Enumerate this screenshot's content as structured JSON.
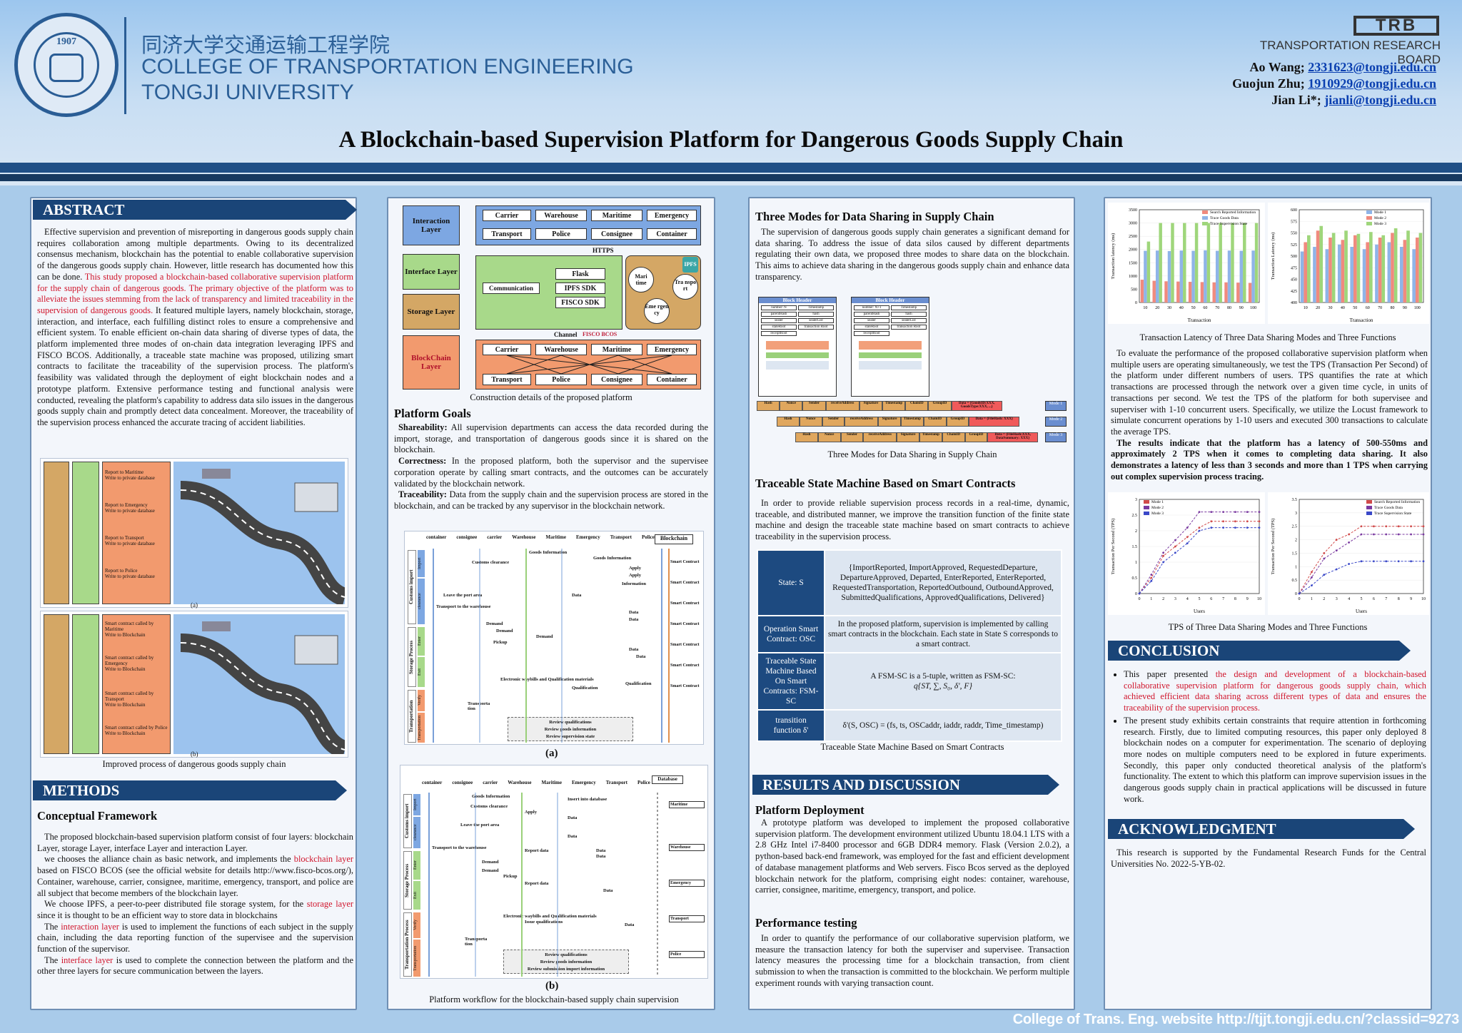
{
  "header": {
    "college_cn": "同济大学交通运输工程学院",
    "college_en1": "COLLEGE OF TRANSPORTATION ENGINEERING",
    "college_en2": "TONGJI UNIVERSITY",
    "seal_year": "1907",
    "trb_logo": "TRB",
    "trb_name": "TRANSPORTATION RESEARCH BOARD",
    "authors": [
      {
        "name": "Ao Wang; ",
        "email": "2331623@tongji.edu.cn"
      },
      {
        "name": "Guojun Zhu; ",
        "email": "1910929@tongji.edu.cn"
      },
      {
        "name": "Jian Li*; ",
        "email": "jianli@tongji.edu.cn"
      }
    ],
    "title": "A Blockchain-based Supervision Platform for Dangerous Goods Supply Chain"
  },
  "abstract": {
    "heading": "ABSTRACT",
    "p1": "Effective supervision and prevention of misreporting in dangerous goods supply chain requires collaboration among multiple departments. Owing to its decentralized consensus mechanism, blockchain has the potential to enable collaborative supervision of the dangerous goods supply chain. However, little research has documented how this can be done. ",
    "p1_red": "This study proposed a blockchain-based collaborative supervision platform for the supply chain of dangerous goods. The primary objective of the platform was to alleviate the issues stemming from the lack of transparency and limited traceability in the supervision of dangerous goods.",
    "p1_rest": " It featured multiple layers, namely blockchain, storage, interaction, and interface, each fulfilling distinct roles to ensure a comprehensive and efficient system. To enable efficient on-chain data sharing of diverse types of data, the platform implemented three modes of on-chain data integration leveraging IPFS and FISCO BCOS. Additionally, a traceable state machine was proposed, utilizing smart contracts to facilitate the traceability of the supervision process. The platform's feasibility was validated through the deployment of eight blockchain nodes and a prototype platform. Extensive performance testing and functional analysis were conducted, revealing the platform's capability to address data silo issues in the dangerous goods supply chain and promptly detect data concealment. Moreover, the traceability of the supervision process enhanced the accurate tracing of accident liabilities.",
    "fig_a_items": [
      "Report to Maritime\nWrite to private database",
      "Report to Emergency\nWrite to private database",
      "Report to Transport\nWrite to private database",
      "Report to Police\nWrite to private database"
    ],
    "fig_b_items": [
      "Smart contract called by Maritime\nWrite to Blockchain",
      "Smart contract called by Emergency\nWrite to Blockchain",
      "Smart contract called by Transport\nWrite to Blockchain",
      "Smart contract called by Police\nWrite to Blockchain"
    ],
    "fig_a_label": "(a)",
    "fig_b_label": "(b)",
    "caption": "Improved process of dangerous goods supply chain"
  },
  "methods": {
    "heading": "METHODS",
    "sub": "Conceptual Framework",
    "p1": "The proposed blockchain-based supervision platform consist of four layers: blockchain Layer, storage Layer, interface Layer and interaction Layer.",
    "p2a": "we chooses the alliance chain as basic network, and implements the ",
    "p2red": "blockchain layer",
    "p2b": " based on FISCO BCOS (see the official website for details http://www.fisco-bcos.org/), Container, warehouse, carrier, consignee, maritime, emergency, transport, and police are all subject that become members of the blockchain layer.",
    "p3a": "We choose IPFS, a peer-to-peer distributed file storage system, for the ",
    "p3red": "storage layer",
    "p3b": " since it is thought to be an efficient way to store data in blockchains",
    "p4a": "The ",
    "p4red": "interaction layer",
    "p4b": " is used to implement the functions of each subject in the supply chain, including the data reporting function of the supervisee and the supervision function of the supervisor.",
    "p5a": "The ",
    "p5red": "interface layer",
    "p5b": " is used to complete the connection between the platform and the other three layers for secure communication between the layers."
  },
  "platform": {
    "layers": [
      "Interaction Layer",
      "Interface Layer",
      "Storage Layer",
      "BlockChain Layer"
    ],
    "top_row1": [
      "Carrier",
      "Warehouse",
      "Maritime",
      "Emergency"
    ],
    "top_row2": [
      "Transport",
      "Police",
      "Consignee",
      "Container"
    ],
    "https": "HTTPS",
    "communication": "Communication",
    "sdk": [
      "Flask",
      "IPFS SDK",
      "FISCO SDK"
    ],
    "storage_nodes": [
      "Mari time",
      "Tra nspo rt",
      "Eme rgen cy",
      "IPFS"
    ],
    "channel": "Channel",
    "fisco": "FISCO BCOS",
    "bottom_row1": [
      "Carrier",
      "Warehouse",
      "Maritime",
      "Emergency"
    ],
    "bottom_row2": [
      "Transport",
      "Police",
      "Consignee",
      "Container"
    ],
    "caption": "Construction details of the proposed platform"
  },
  "goals": {
    "heading": "Platform Goals",
    "items": [
      {
        "term": "Shareability:",
        "text": " All supervision departments can access the data recorded during the import, storage, and transportation of dangerous goods since it is shared on the blockchain."
      },
      {
        "term": "Correctness:",
        "text": " In the proposed platform, both the supervisor and the supervisee corporation operate by calling smart contracts, and the outcomes can be accurately validated by the blockchain network."
      },
      {
        "term": "Traceability:",
        "text": " Data from the supply chain and the supervision process are stored in the blockchain, and can be tracked by any supervisor in the blockchain network."
      }
    ]
  },
  "workflow_a": {
    "actors": [
      "container",
      "consignee",
      "carrier",
      "Warehouse",
      "Maritime",
      "Emergency",
      "Transport",
      "Police"
    ],
    "right_head": "Blockchain",
    "stages": [
      "Customs import",
      "Storage Process",
      "Transportation"
    ],
    "substages": [
      "Import",
      "clearance",
      "Enter",
      "Exit",
      "Verify",
      "Transportation"
    ],
    "steps": [
      "Goods Information",
      "Customs clearance",
      "Goods Information",
      "Apply",
      "Apply",
      "Information",
      "Leave the port area",
      "Data",
      "Transport to the warehouse",
      "Data",
      "Data",
      "Demand",
      "Demand",
      "Demand",
      "Pickup",
      "Data",
      "Data",
      "Electronic waybills and Qualification materials",
      "Qualification",
      "Qualification",
      "Transporta tion",
      "Review qualifications",
      "Review goods information",
      "Review supervision state"
    ],
    "contract": "Smart Contract",
    "label": "(a)"
  },
  "workflow_b": {
    "actors": [
      "container",
      "consignee",
      "carrier",
      "Warehouse",
      "Maritime",
      "Emergency",
      "Transport",
      "Police"
    ],
    "right_head": "Database",
    "stages": [
      "Customs import",
      "Storage Process",
      "Transportation Process"
    ],
    "substages": [
      "Import",
      "clearance",
      "Enter",
      "Exit",
      "Verify",
      "Transportation"
    ],
    "steps": [
      "Goods Information",
      "Insert into database",
      "Customs clearance",
      "Apply",
      "Data",
      "Leave the port area",
      "Data",
      "Transport to the warehouse",
      "Report data",
      "Data",
      "Data",
      "Demand",
      "Demand",
      "Pickup",
      "Report data",
      "Data",
      "Electronic waybills and Qualification materials",
      "Issue qualifications",
      "Data",
      "Transporta tion",
      "Review qualifications",
      "Review goods information",
      "Review submission import information"
    ],
    "db_labels": [
      "Maritime",
      "Warehouse",
      "Emergency",
      "Transport",
      "Police"
    ],
    "label": "(b)",
    "caption": "Platform workflow for the blockchain-based supply chain supervision"
  },
  "modes": {
    "heading": "Three Modes for Data Sharing in Supply Chain",
    "text": "The supervision of dangerous goods supply chain generates a significant demand for data sharing. To address the issue of data silos caused by different departments regulating their own data, we proposed three modes to share data on the blockchain. This aims to achieve data sharing in the dangerous goods supply chain and enhance data transparency.",
    "block_header": "Block Header",
    "header_fields": [
      "number: N",
      "Timestamp",
      "parentHash",
      "hash",
      "sealer",
      "sealerList",
      "stateRoot",
      "transaction Root",
      "receiptRoot"
    ],
    "header_fields2": [
      "number: N+1",
      "Timestamp",
      "parentHash",
      "hash",
      "sealer",
      "sealerList",
      "stateRoot",
      "transaction Root",
      "receiptRoot"
    ],
    "tx_fields": [
      "Hash",
      "Nonce",
      "Sender",
      "receiveAddress",
      "Signature",
      "Timestamp",
      "ChainID",
      "GroupID"
    ],
    "mode_data": [
      "Data = {GoodsID:XXX, GoodsType:XXX, ...}",
      "Data = {FileHash: XXX}",
      "Data = {FileHash:XXX, DataSummary: XXX}"
    ],
    "mode_labels": [
      "Mode 1",
      "Mode 2",
      "Mode 3"
    ],
    "caption": "Three Modes for Data Sharing in Supply Chain"
  },
  "tsm": {
    "heading": "Traceable State Machine Based on Smart Contracts",
    "text": "In order to provide reliable supervision process records in a real-time, dynamic, traceable, and distributed manner, we improve the transition function of the finite state machine and design the traceable state machine based on smart contracts to achieve traceability in the supervision process.",
    "rows": [
      {
        "label": "State: S",
        "value": "{ImportReported, ImportApproved, RequestedDeparture, DepartureApproved, Departed, EnterReported, EnterReported, RequestedTransportation, ReportedOutbound, OutboundApproved, SubmittedQualifications, ApprovedQualifications, Delivered}"
      },
      {
        "label": "Operation Smart Contract: OSC",
        "value": "In the proposed platform, supervision is implemented by calling smart contracts in the blockchain. Each state in State S corresponds to a smart contract."
      },
      {
        "label": "Traceable State Machine Based On Smart Contracts: FSM-SC",
        "value": "A FSM-SC is a 5-tuple, written as FSM-SC:",
        "value2": "q{ST, ∑, S₀, δ', F}"
      },
      {
        "label": "transition function δ'",
        "value": "δ'(S, OSC) = (fs, ts, OSCaddr, iaddr, raddr, Time_timestamp)"
      }
    ],
    "caption": "Traceable State Machine Based on Smart Contracts"
  },
  "results": {
    "heading": "RESULTS AND DISCUSSION",
    "deploy_h": "Platform Deployment",
    "deploy_text": "A prototype platform was developed to implement the proposed collaborative supervision platform. The development environment utilized Ubuntu 18.04.1 LTS with a 2.8 GHz Intel i7-8400 processor and 6GB DDR4 memory. Flask (Version 2.0.2), a python-based back-end framework, was employed for the fast and efficient development of database management platforms and Web servers. Fisco Bcos served as the deployed blockchain network for the platform, comprising eight nodes: container, warehouse, carrier, consignee, maritime, emergency, transport, and police.",
    "perf_h": "Performance testing",
    "perf_text": "In order to quantify the performance of our collaborative supervision platform, we measure the transaction latency for both the superviser and supervisee. Transaction latency measures the processing time for a blockchain transaction, from client submission to when the transaction is committed to the blockchain. We perform multiple experiment rounds with varying transaction count."
  },
  "latency": {
    "caption": "Transaction Latency of Three Data Sharing Modes and Three Functions",
    "text": "To evaluate the performance of the proposed collaborative supervision platform when multiple users are operating simultaneously, we test the TPS (Transaction Per Second) of the platform under different numbers of users. TPS quantifies the rate at which transactions are processed through the network over a given time cycle, in units of transactions per second. We test the TPS of the platform for both supervisee and superviser with 1-10 concurrent users. Specifically, we utilize the Locust framework to simulate concurrent operations by 1-10 users and executed 300 transactions to calculate the average TPS.",
    "bold_text": "The results indicate that the platform has a latency of 500-550ms and approximately 2 TPS when it comes to completing data sharing. It also demonstrates a latency of less than 3 seconds and more than 1 TPS when carrying out complex supervision process tracing.",
    "tps_caption": "TPS of Three Data Sharing Modes and Three Functions"
  },
  "conclusion": {
    "heading": "CONCLUSION",
    "b1a": "This paper presented ",
    "b1red": "the design and development of a blockchain-based collaborative supervision platform for dangerous goods supply chain, which achieved efficient data sharing across different types of data and ensures the traceability of the supervision process.",
    "b2": "The present study exhibits certain constraints that require attention in forthcoming research. Firstly, due to limited computing resources, this paper only deployed 8 blockchain nodes on a  computer for experimentation. The scenario of deploying more nodes on multiple computers need to be explored in future experiments. Secondly, this paper only conducted theoretical analysis of the platform's functionality. The extent to which this platform can improve supervision issues in the dangerous goods supply chain in practical applications will be discussed in future work."
  },
  "ack": {
    "heading": "ACKNOWLEDGMENT",
    "text": "This research is supported by the Fundamental Research Funds for the Central Universities No. 2022-5-YB-02."
  },
  "footer": "College of Trans. Eng. website   http://tjjt.tongji.edu.cn/?classid=9273",
  "chart_data": [
    {
      "type": "bar",
      "title": "",
      "xlabel": "Transaction",
      "ylabel": "Transaction latency (ms)",
      "categories": [
        10,
        20,
        30,
        40,
        50,
        60,
        70,
        80,
        90,
        100
      ],
      "ylim": [
        0,
        3500
      ],
      "yticks": [
        0,
        500,
        1000,
        1500,
        2000,
        2500,
        3000,
        3500
      ],
      "legend": "top-right",
      "series": [
        {
          "name": "Search Reported Information",
          "color": "#f08a7e",
          "values": [
            860,
            820,
            800,
            790,
            780,
            770,
            760,
            760,
            750,
            740
          ]
        },
        {
          "name": "Trace Goods Data",
          "color": "#8fb4e8",
          "values": [
            1950,
            1960,
            1940,
            1960,
            1950,
            1970,
            1950,
            1960,
            1950,
            1960
          ]
        },
        {
          "name": "Trace Supervision State",
          "color": "#9fd67b",
          "values": [
            2300,
            3000,
            3000,
            3000,
            3000,
            3000,
            3000,
            3000,
            3000,
            3000
          ]
        }
      ]
    },
    {
      "type": "bar",
      "title": "",
      "xlabel": "Transaction",
      "ylabel": "Transaction Latency (ms)",
      "categories": [
        10,
        20,
        30,
        40,
        50,
        60,
        70,
        80,
        90,
        100
      ],
      "ylim": [
        400,
        600
      ],
      "yticks": [
        400,
        425,
        450,
        475,
        500,
        525,
        550,
        575,
        600
      ],
      "legend": "top-right",
      "series": [
        {
          "name": "Mode 1",
          "color": "#8fb4e8",
          "values": [
            510,
            520,
            515,
            525,
            520,
            515,
            525,
            530,
            520,
            515
          ]
        },
        {
          "name": "Mode 2",
          "color": "#f08a7e",
          "values": [
            530,
            555,
            540,
            535,
            545,
            530,
            540,
            550,
            535,
            540
          ]
        },
        {
          "name": "Mode 3",
          "color": "#9fd67b",
          "values": [
            545,
            565,
            550,
            555,
            548,
            552,
            545,
            560,
            555,
            550
          ]
        }
      ]
    },
    {
      "type": "line",
      "title": "",
      "xlabel": "Users",
      "ylabel": "Transaction Per Second (TPS)",
      "x": [
        0,
        1,
        2,
        3,
        4,
        5,
        6,
        7,
        8,
        9,
        10
      ],
      "ylim": [
        0,
        3.0
      ],
      "yticks": [
        0,
        0.5,
        1.0,
        1.5,
        2.0,
        2.5,
        3.0
      ],
      "legend": "top-left",
      "series": [
        {
          "name": "Mode 1",
          "color": "#d04a4a",
          "values": [
            0,
            0.5,
            1.2,
            1.5,
            1.8,
            2.1,
            2.3,
            2.3,
            2.3,
            2.3,
            2.3
          ]
        },
        {
          "name": "Mode 2",
          "color": "#7a3aa0",
          "values": [
            0,
            0.6,
            1.3,
            1.7,
            2.1,
            2.6,
            2.6,
            2.6,
            2.6,
            2.6,
            2.6
          ]
        },
        {
          "name": "Mode 3",
          "color": "#3a48c8",
          "values": [
            0,
            0.4,
            1.0,
            1.3,
            1.6,
            2.0,
            2.1,
            2.1,
            2.1,
            2.1,
            2.1
          ]
        }
      ]
    },
    {
      "type": "line",
      "title": "",
      "xlabel": "Users",
      "ylabel": "Transaction Per Second (TPS)",
      "x": [
        0,
        1,
        2,
        3,
        4,
        5,
        6,
        7,
        8,
        9,
        10
      ],
      "ylim": [
        0,
        3.5
      ],
      "yticks": [
        0,
        0.5,
        1.0,
        1.5,
        2.0,
        2.5,
        3.0,
        3.5
      ],
      "legend": "top-right",
      "series": [
        {
          "name": "Search Reported Information",
          "color": "#d04a4a",
          "values": [
            0,
            0.8,
            1.5,
            2.0,
            2.2,
            2.5,
            2.5,
            2.5,
            2.5,
            2.5,
            2.5
          ]
        },
        {
          "name": "Trace Goods Data",
          "color": "#7a3aa0",
          "values": [
            0,
            0.6,
            1.3,
            1.6,
            1.9,
            2.2,
            2.2,
            2.2,
            2.2,
            2.2,
            2.2
          ]
        },
        {
          "name": "Trace Supervision State",
          "color": "#3a48c8",
          "values": [
            0,
            0.3,
            0.7,
            0.9,
            1.1,
            1.2,
            1.2,
            1.2,
            1.2,
            1.2,
            1.2
          ]
        }
      ]
    }
  ]
}
